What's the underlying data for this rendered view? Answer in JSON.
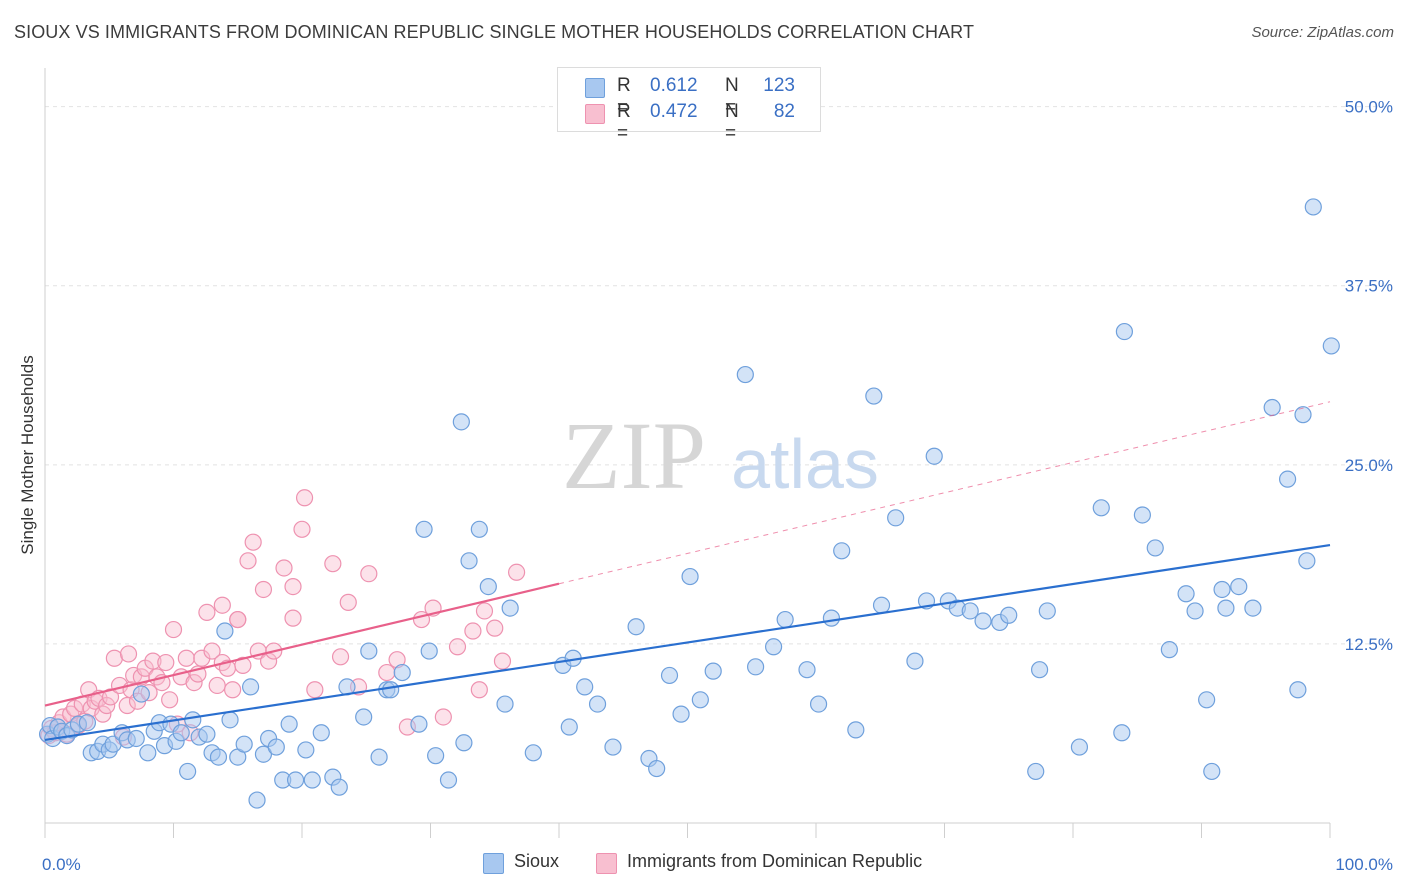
{
  "title": "SIOUX VS IMMIGRANTS FROM DOMINICAN REPUBLIC SINGLE MOTHER HOUSEHOLDS CORRELATION CHART",
  "source": "Source: ZipAtlas.com",
  "watermark": {
    "zip": "ZIP",
    "atlas": "atlas"
  },
  "legend": {
    "rows": [
      {
        "r_label": "R =",
        "r_value": "0.612",
        "n_label": "N =",
        "n_value": "123"
      },
      {
        "r_label": "R =",
        "r_value": "0.472",
        "n_label": "N =",
        "n_value": "82"
      }
    ]
  },
  "bottom_legend": {
    "sioux": "Sioux",
    "dominican": "Immigrants from Dominican Republic"
  },
  "colors": {
    "sioux_fill": "#a8c8f0",
    "sioux_stroke": "#6fa0dc",
    "sioux_line": "#2a6fcf",
    "dom_fill": "#f8bfd0",
    "dom_stroke": "#ee92b0",
    "dom_line": "#e8608a",
    "value_text": "#3a6fc4",
    "grid": "#e2e2e2"
  },
  "chart_data": {
    "type": "scatter",
    "title": "SIOUX VS IMMIGRANTS FROM DOMINICAN REPUBLIC SINGLE MOTHER HOUSEHOLDS CORRELATION CHART",
    "xlabel": "",
    "ylabel": "Single Mother Households",
    "xlim": [
      0,
      100
    ],
    "ylim": [
      0,
      52
    ],
    "x_tick_labels": [
      "0.0%",
      "100.0%"
    ],
    "y_ticks": [
      12.5,
      25.0,
      37.5,
      50.0
    ],
    "y_tick_labels": [
      "12.5%",
      "25.0%",
      "37.5%",
      "50.0%"
    ],
    "grid": true,
    "legend_position": "top-center",
    "series": [
      {
        "name": "Sioux",
        "r": 0.612,
        "n": 123,
        "trend": {
          "x": [
            0,
            100
          ],
          "y": [
            5.8,
            19.4
          ]
        },
        "points": [
          [
            0.2,
            6.2
          ],
          [
            0.4,
            6.8
          ],
          [
            0.6,
            5.9
          ],
          [
            1.0,
            6.7
          ],
          [
            1.3,
            6.4
          ],
          [
            1.7,
            6.1
          ],
          [
            2.1,
            6.5
          ],
          [
            2.6,
            6.9
          ],
          [
            3.3,
            7.0
          ],
          [
            3.6,
            4.9
          ],
          [
            4.1,
            5.0
          ],
          [
            4.5,
            5.5
          ],
          [
            5.0,
            5.1
          ],
          [
            5.3,
            5.5
          ],
          [
            6.0,
            6.3
          ],
          [
            6.4,
            5.8
          ],
          [
            7.1,
            5.9
          ],
          [
            7.5,
            9.0
          ],
          [
            8.0,
            4.9
          ],
          [
            8.5,
            6.4
          ],
          [
            8.9,
            7.0
          ],
          [
            9.3,
            5.4
          ],
          [
            9.8,
            6.9
          ],
          [
            10.2,
            5.7
          ],
          [
            10.6,
            6.3
          ],
          [
            11.1,
            3.6
          ],
          [
            11.5,
            7.2
          ],
          [
            12.0,
            6.0
          ],
          [
            12.6,
            6.2
          ],
          [
            13.0,
            4.9
          ],
          [
            13.5,
            4.6
          ],
          [
            14.0,
            13.4
          ],
          [
            14.4,
            7.2
          ],
          [
            15.0,
            4.6
          ],
          [
            15.5,
            5.5
          ],
          [
            16.0,
            9.5
          ],
          [
            16.5,
            1.6
          ],
          [
            17.0,
            4.8
          ],
          [
            17.4,
            5.9
          ],
          [
            18.0,
            5.3
          ],
          [
            18.5,
            3.0
          ],
          [
            19.0,
            6.9
          ],
          [
            19.5,
            3.0
          ],
          [
            20.3,
            5.1
          ],
          [
            20.8,
            3.0
          ],
          [
            21.5,
            6.3
          ],
          [
            22.4,
            3.2
          ],
          [
            22.9,
            2.5
          ],
          [
            23.5,
            9.5
          ],
          [
            24.8,
            7.4
          ],
          [
            25.2,
            12.0
          ],
          [
            26.0,
            4.6
          ],
          [
            26.6,
            9.3
          ],
          [
            26.9,
            9.3
          ],
          [
            27.8,
            10.5
          ],
          [
            29.1,
            6.9
          ],
          [
            29.5,
            20.5
          ],
          [
            29.9,
            12.0
          ],
          [
            30.4,
            4.7
          ],
          [
            31.4,
            3.0
          ],
          [
            32.4,
            28.0
          ],
          [
            32.6,
            5.6
          ],
          [
            33.0,
            18.3
          ],
          [
            33.8,
            20.5
          ],
          [
            34.5,
            16.5
          ],
          [
            35.8,
            8.3
          ],
          [
            36.2,
            15.0
          ],
          [
            38.0,
            4.9
          ],
          [
            40.3,
            11.0
          ],
          [
            40.8,
            6.7
          ],
          [
            41.1,
            11.5
          ],
          [
            42.0,
            9.5
          ],
          [
            43.0,
            8.3
          ],
          [
            44.2,
            5.3
          ],
          [
            46.0,
            13.7
          ],
          [
            47.0,
            4.5
          ],
          [
            47.6,
            3.8
          ],
          [
            48.6,
            10.3
          ],
          [
            49.5,
            7.6
          ],
          [
            50.2,
            17.2
          ],
          [
            51.0,
            8.6
          ],
          [
            52.0,
            10.6
          ],
          [
            54.5,
            31.3
          ],
          [
            55.3,
            10.9
          ],
          [
            56.7,
            12.3
          ],
          [
            57.6,
            14.2
          ],
          [
            59.3,
            10.7
          ],
          [
            60.2,
            8.3
          ],
          [
            61.2,
            14.3
          ],
          [
            62.0,
            19.0
          ],
          [
            63.1,
            6.5
          ],
          [
            64.5,
            29.8
          ],
          [
            65.1,
            15.2
          ],
          [
            66.2,
            21.3
          ],
          [
            67.7,
            11.3
          ],
          [
            68.6,
            15.5
          ],
          [
            69.2,
            25.6
          ],
          [
            70.3,
            15.5
          ],
          [
            71.0,
            15.0
          ],
          [
            72.0,
            14.8
          ],
          [
            73.0,
            14.1
          ],
          [
            74.3,
            14.0
          ],
          [
            75.0,
            14.5
          ],
          [
            77.1,
            3.6
          ],
          [
            77.4,
            10.7
          ],
          [
            78.0,
            14.8
          ],
          [
            80.5,
            5.3
          ],
          [
            82.2,
            22.0
          ],
          [
            83.8,
            6.3
          ],
          [
            84.0,
            34.3
          ],
          [
            85.4,
            21.5
          ],
          [
            86.4,
            19.2
          ],
          [
            87.5,
            12.1
          ],
          [
            88.8,
            16.0
          ],
          [
            89.5,
            14.8
          ],
          [
            90.4,
            8.6
          ],
          [
            90.8,
            3.6
          ],
          [
            91.6,
            16.3
          ],
          [
            91.9,
            15.0
          ],
          [
            92.9,
            16.5
          ],
          [
            94.0,
            15.0
          ],
          [
            95.5,
            29.0
          ],
          [
            96.7,
            24.0
          ],
          [
            97.5,
            9.3
          ],
          [
            97.9,
            28.5
          ],
          [
            98.2,
            18.3
          ],
          [
            98.7,
            43.0
          ],
          [
            100.1,
            33.3
          ]
        ]
      },
      {
        "name": "Immigrants from Dominican Republic",
        "r": 0.472,
        "n": 82,
        "trend": {
          "x": [
            0,
            40
          ],
          "y": [
            8.2,
            16.7
          ]
        },
        "trend_extension": {
          "x": [
            40,
            100
          ],
          "y": [
            16.7,
            29.4
          ]
        },
        "points": [
          [
            0.3,
            6.1
          ],
          [
            0.5,
            6.6
          ],
          [
            0.8,
            6.3
          ],
          [
            1.1,
            7.0
          ],
          [
            1.4,
            7.4
          ],
          [
            1.7,
            6.2
          ],
          [
            2.0,
            7.6
          ],
          [
            2.3,
            8.0
          ],
          [
            2.6,
            6.8
          ],
          [
            2.9,
            8.3
          ],
          [
            3.1,
            7.1
          ],
          [
            3.4,
            9.3
          ],
          [
            3.6,
            8.0
          ],
          [
            3.9,
            8.5
          ],
          [
            4.2,
            8.7
          ],
          [
            4.5,
            7.6
          ],
          [
            4.8,
            8.2
          ],
          [
            5.1,
            8.8
          ],
          [
            5.4,
            11.5
          ],
          [
            5.8,
            9.6
          ],
          [
            6.1,
            6.0
          ],
          [
            6.4,
            8.2
          ],
          [
            6.7,
            9.3
          ],
          [
            6.9,
            10.3
          ],
          [
            7.2,
            8.5
          ],
          [
            7.5,
            10.2
          ],
          [
            7.8,
            10.8
          ],
          [
            8.1,
            9.1
          ],
          [
            8.4,
            11.3
          ],
          [
            8.7,
            10.2
          ],
          [
            9.1,
            9.8
          ],
          [
            9.4,
            11.2
          ],
          [
            9.7,
            8.6
          ],
          [
            10.0,
            13.5
          ],
          [
            10.3,
            6.9
          ],
          [
            10.6,
            10.2
          ],
          [
            11.0,
            11.5
          ],
          [
            11.3,
            6.3
          ],
          [
            11.6,
            9.8
          ],
          [
            11.9,
            10.4
          ],
          [
            12.2,
            11.5
          ],
          [
            12.6,
            14.7
          ],
          [
            13.0,
            12.0
          ],
          [
            13.4,
            9.6
          ],
          [
            13.8,
            11.2
          ],
          [
            14.2,
            10.8
          ],
          [
            14.6,
            9.3
          ],
          [
            15.0,
            14.2
          ],
          [
            15.4,
            11.0
          ],
          [
            15.8,
            18.3
          ],
          [
            16.2,
            19.6
          ],
          [
            16.6,
            12.0
          ],
          [
            17.0,
            16.3
          ],
          [
            17.4,
            11.3
          ],
          [
            17.8,
            12.0
          ],
          [
            18.6,
            17.8
          ],
          [
            19.3,
            14.3
          ],
          [
            20.2,
            22.7
          ],
          [
            21.0,
            9.3
          ],
          [
            22.4,
            18.1
          ],
          [
            23.0,
            11.6
          ],
          [
            23.6,
            15.4
          ],
          [
            24.4,
            9.5
          ],
          [
            25.2,
            17.4
          ],
          [
            26.6,
            10.5
          ],
          [
            27.4,
            11.4
          ],
          [
            28.2,
            6.7
          ],
          [
            29.3,
            14.2
          ],
          [
            30.2,
            15.0
          ],
          [
            31.0,
            7.4
          ],
          [
            32.1,
            12.3
          ],
          [
            33.3,
            13.4
          ],
          [
            33.8,
            9.3
          ],
          [
            34.2,
            14.8
          ],
          [
            35.0,
            13.6
          ],
          [
            35.6,
            11.3
          ],
          [
            36.7,
            17.5
          ],
          [
            13.8,
            15.2
          ],
          [
            15.0,
            14.2
          ],
          [
            19.3,
            16.5
          ],
          [
            20.0,
            20.5
          ],
          [
            6.5,
            11.8
          ]
        ]
      }
    ]
  }
}
